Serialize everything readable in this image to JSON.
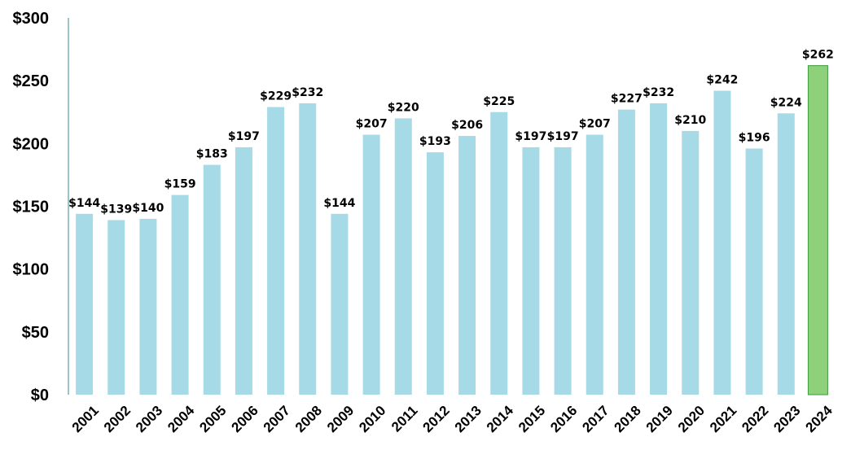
{
  "chart_data": {
    "type": "bar",
    "title": "",
    "xlabel": "",
    "ylabel": "",
    "ylim": [
      0,
      300
    ],
    "yticks": [
      0,
      50,
      100,
      150,
      200,
      250,
      300
    ],
    "ytick_labels": [
      "$0",
      "$50",
      "$100",
      "$150",
      "$200",
      "$250",
      "$300"
    ],
    "grid": false,
    "categories": [
      "2001",
      "2002",
      "2003",
      "2004",
      "2005",
      "2006",
      "2007",
      "2008",
      "2009",
      "2010",
      "2011",
      "2012",
      "2013",
      "2014",
      "2015",
      "2016",
      "2017",
      "2018",
      "2019",
      "2020",
      "2021",
      "2022",
      "2023",
      "2024"
    ],
    "values": [
      144,
      139,
      140,
      159,
      183,
      197,
      229,
      232,
      144,
      207,
      220,
      193,
      206,
      225,
      197,
      197,
      207,
      227,
      232,
      210,
      242,
      196,
      224,
      262
    ],
    "data_labels": [
      "$144",
      "$139",
      "$140",
      "$159",
      "$183",
      "$197",
      "$229",
      "$232",
      "$144",
      "$207",
      "$220",
      "$193",
      "$206",
      "$225",
      "$197",
      "$197",
      "$207",
      "$227",
      "$232",
      "$210",
      "$242",
      "$196",
      "$224",
      "$262"
    ],
    "colors": {
      "bar": "#a6dae6",
      "highlight": "#8fd17a",
      "highlight_border": "#3d9a3d",
      "axis": "#3a8a8a"
    },
    "highlight_index": 23
  }
}
